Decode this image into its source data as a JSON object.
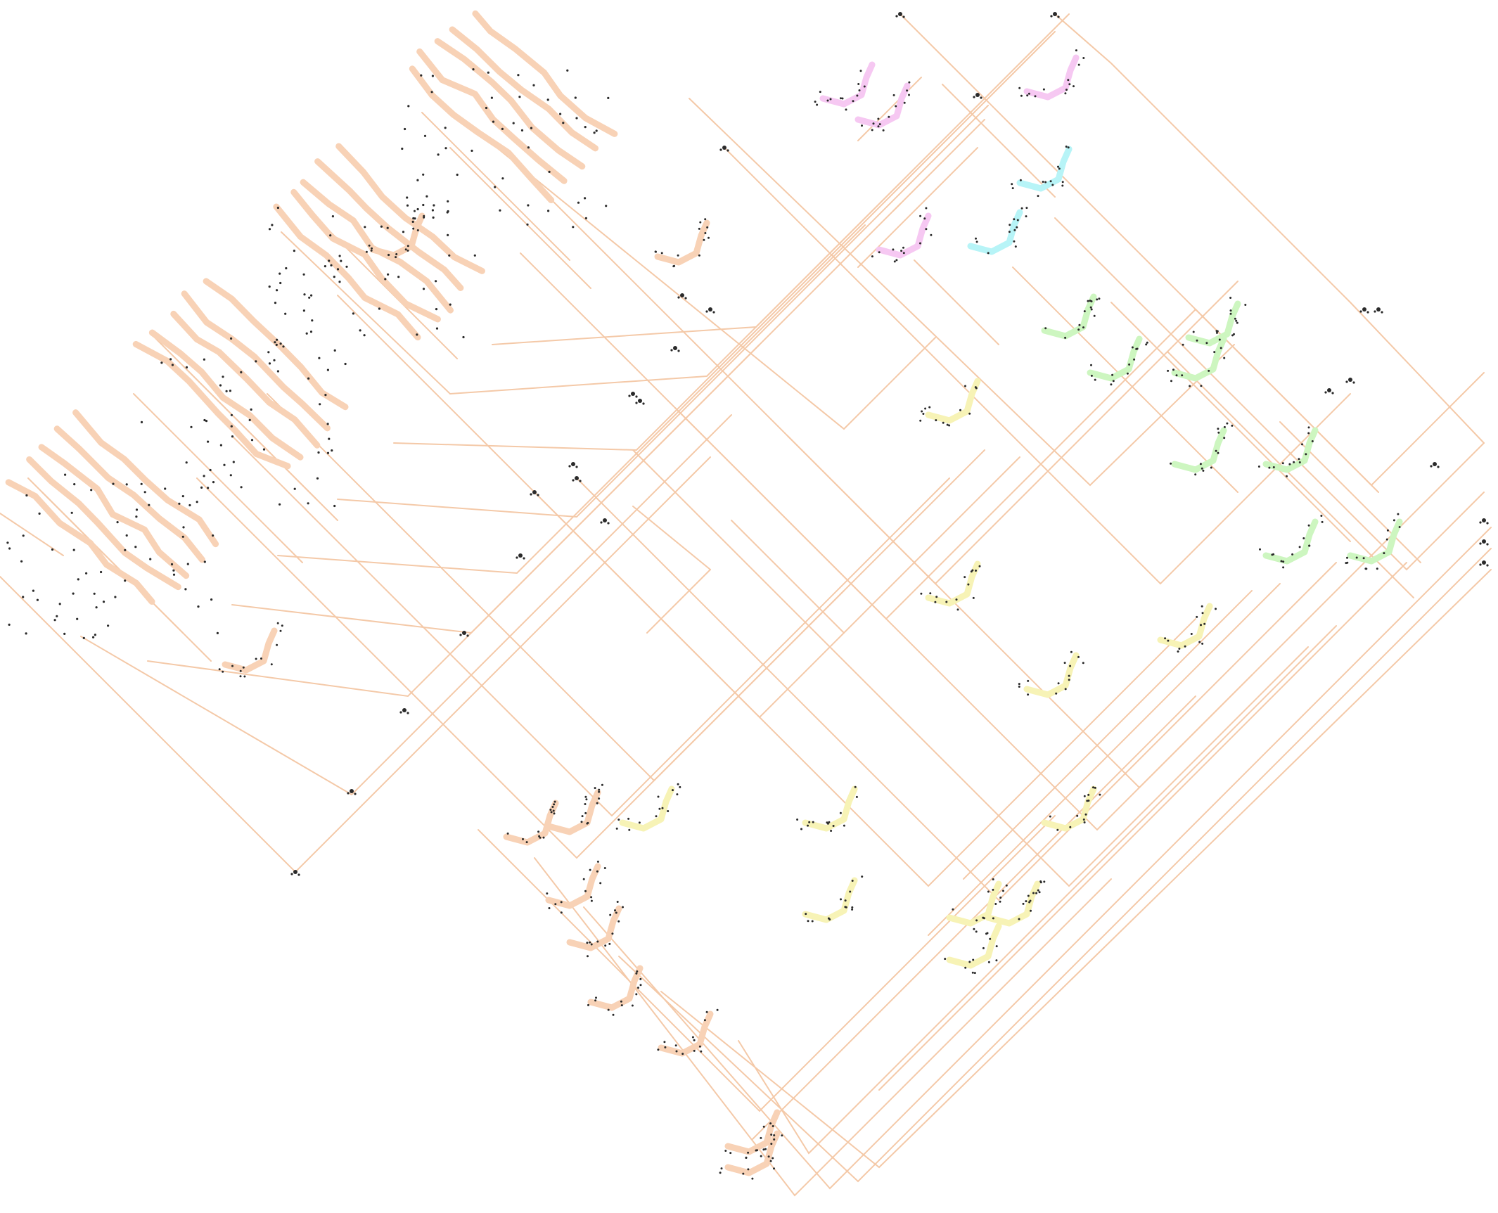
{
  "diagram": {
    "kind": "circuit-layout-graph",
    "text_labels": [],
    "colors": {
      "background": "#ffffff",
      "wire": "#f4c9a8",
      "node_dot": "#2a2a2a",
      "cluster_peach": "#f8d2b6",
      "cluster_pink": "#f6c8f2",
      "cluster_cyan": "#b7f4f7",
      "cluster_green": "#cdf6c0",
      "cluster_yellow": "#f7f3b6"
    },
    "cluster_groups": [
      {
        "name": "peach-large-blocks",
        "color_key": "cluster_peach",
        "count": 4
      },
      {
        "name": "peach-small-blocks",
        "color_key": "cluster_peach",
        "count": 7
      },
      {
        "name": "pink-blocks",
        "color_key": "cluster_pink",
        "count": 4
      },
      {
        "name": "cyan-blocks",
        "color_key": "cluster_cyan",
        "count": 2
      },
      {
        "name": "green-blocks",
        "color_key": "cluster_green",
        "count": 8
      },
      {
        "name": "yellow-blocks",
        "color_key": "cluster_yellow",
        "count": 11
      }
    ]
  }
}
